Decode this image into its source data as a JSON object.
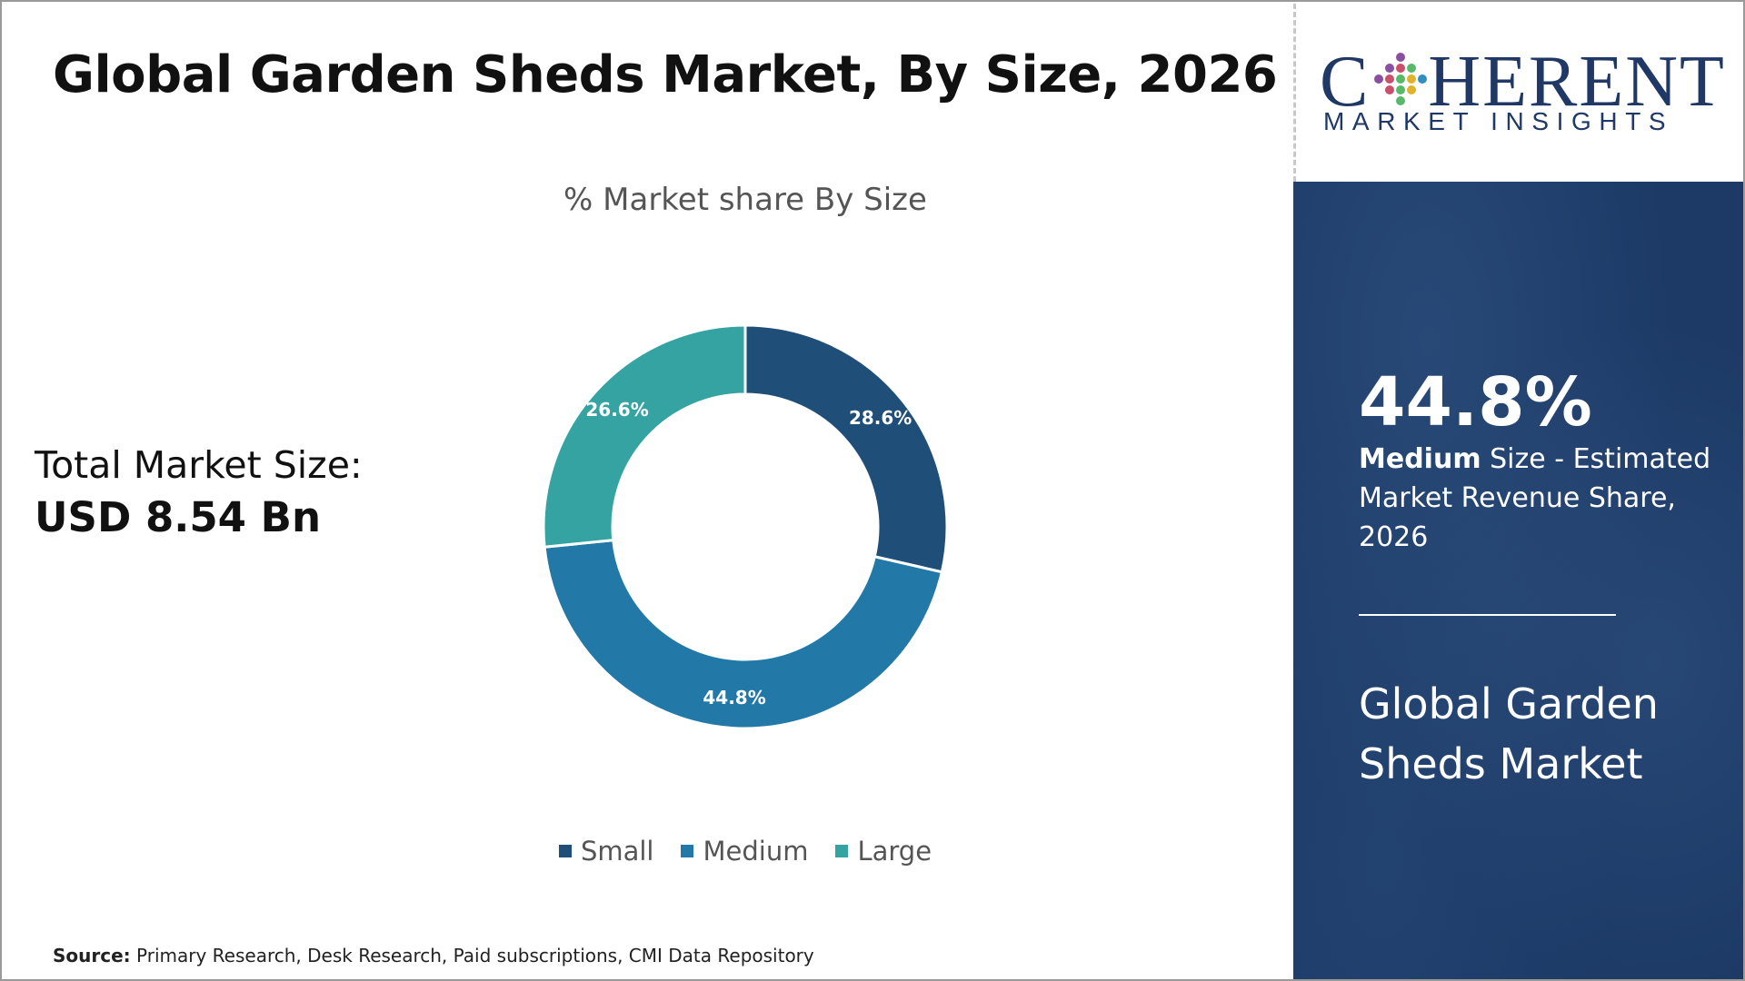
{
  "header": {
    "title": "Global Garden Sheds Market, By Size, 2026"
  },
  "logo": {
    "left": "C",
    "right": "HERENT",
    "subtitle": "MARKET INSIGHTS",
    "colors": [
      "#2f8fbf",
      "#58b96a",
      "#8a4fa0",
      "#e0b32a",
      "#c94f6d"
    ]
  },
  "summary": {
    "label": "Total Market Size:",
    "value": "USD 8.54 Bn"
  },
  "chart_data": {
    "type": "pie",
    "title": "% Market share By Size",
    "donut": true,
    "categories": [
      "Small",
      "Medium",
      "Large"
    ],
    "values": [
      28.6,
      44.8,
      26.6
    ],
    "labels": [
      "28.6%",
      "44.8%",
      "26.6%"
    ],
    "colors": [
      "#1f4e79",
      "#2279a8",
      "#36a3a3"
    ],
    "legend": "bottom"
  },
  "side_panel": {
    "highlight_value": "44.8%",
    "highlight_segment": "Medium",
    "highlight_text": " Size - Estimated Market Revenue Share, 2026",
    "market_name": "Global Garden Sheds Market"
  },
  "footer": {
    "source_label": "Source:",
    "source_text": " Primary Research, Desk Research, Paid subscriptions, CMI Data Repository"
  }
}
